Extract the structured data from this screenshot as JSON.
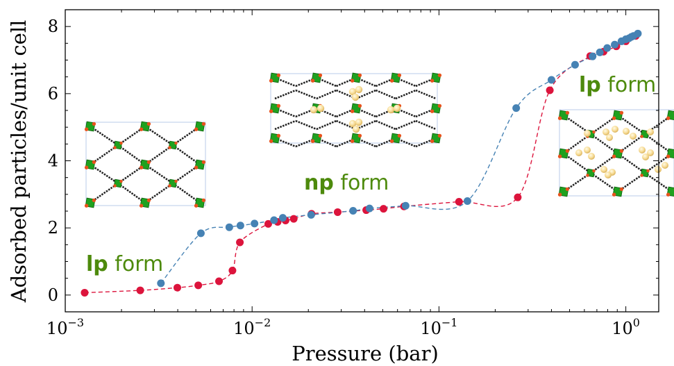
{
  "chart_data": {
    "type": "scatter",
    "title": "",
    "xlabel": "Pressure (bar)",
    "ylabel": "Adsorbed particles/unit cell",
    "x_scale": "log",
    "xlim": [
      0.001,
      1.5
    ],
    "ylim": [
      -0.5,
      8.5
    ],
    "x_ticks": [
      {
        "value": 0.001,
        "base": "10",
        "exp": "−3"
      },
      {
        "value": 0.01,
        "base": "10",
        "exp": "−2"
      },
      {
        "value": 0.1,
        "base": "10",
        "exp": "−1"
      },
      {
        "value": 1,
        "base": "10",
        "exp": "0"
      }
    ],
    "y_ticks": [
      0,
      2,
      4,
      6,
      8
    ],
    "grid": false,
    "series": [
      {
        "color": "#dc143c",
        "x": [
          0.00127,
          0.00252,
          0.00398,
          0.00515,
          0.00665,
          0.00785,
          0.0086,
          0.0122,
          0.0137,
          0.0151,
          0.0167,
          0.0208,
          0.0287,
          0.0408,
          0.0505,
          0.065,
          0.128,
          0.264,
          0.392,
          0.645,
          0.76,
          0.89,
          1.0,
          1.13
        ],
        "y": [
          0.07,
          0.14,
          0.22,
          0.29,
          0.41,
          0.73,
          1.57,
          2.12,
          2.18,
          2.22,
          2.27,
          2.42,
          2.47,
          2.53,
          2.57,
          2.64,
          2.78,
          2.91,
          6.1,
          7.12,
          7.25,
          7.41,
          7.56,
          7.72
        ]
      },
      {
        "color": "#4682b4",
        "x": [
          0.00325,
          0.00532,
          0.00755,
          0.00866,
          0.0103,
          0.0131,
          0.0146,
          0.0207,
          0.0347,
          0.0425,
          0.0663,
          0.142,
          0.259,
          0.4,
          0.535,
          0.664,
          0.726,
          0.795,
          0.872,
          0.948,
          1.0,
          1.04,
          1.07,
          1.1,
          1.16
        ],
        "y": [
          0.35,
          1.84,
          2.02,
          2.07,
          2.13,
          2.23,
          2.3,
          2.39,
          2.51,
          2.58,
          2.66,
          2.8,
          5.57,
          6.41,
          6.86,
          7.11,
          7.23,
          7.36,
          7.46,
          7.56,
          7.62,
          7.65,
          7.69,
          7.72,
          7.79
        ]
      }
    ],
    "annotations": [
      {
        "bold": "lp",
        "text": " form"
      },
      {
        "bold": "np",
        "text": " form"
      },
      {
        "bold": "lp",
        "text": " form"
      }
    ]
  }
}
